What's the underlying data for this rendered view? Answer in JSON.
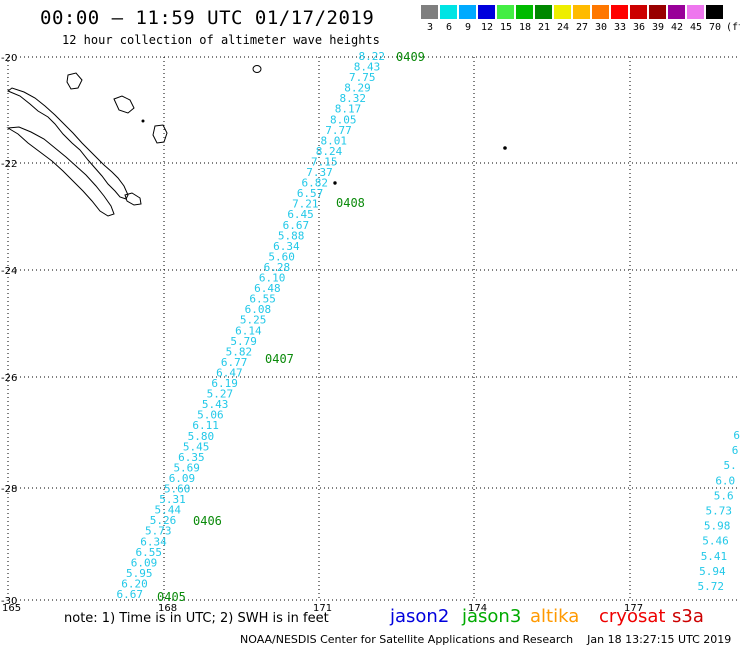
{
  "header": {
    "title": "00:00 – 11:59 UTC 01/17/2019",
    "subtitle": "12 hour collection of altimeter wave heights"
  },
  "legend": {
    "unit": "(ft)",
    "items": [
      {
        "label": "3",
        "color": "#7f7f7f"
      },
      {
        "label": "6",
        "color": "#00e4e4"
      },
      {
        "label": "9",
        "color": "#00aaff"
      },
      {
        "label": "12",
        "color": "#0000dd"
      },
      {
        "label": "15",
        "color": "#44ee44"
      },
      {
        "label": "18",
        "color": "#00bb00"
      },
      {
        "label": "21",
        "color": "#008800"
      },
      {
        "label": "24",
        "color": "#eeee00"
      },
      {
        "label": "27",
        "color": "#ffbb00"
      },
      {
        "label": "30",
        "color": "#ff7700"
      },
      {
        "label": "33",
        "color": "#ff0000"
      },
      {
        "label": "36",
        "color": "#cc0000"
      },
      {
        "label": "39",
        "color": "#990000"
      },
      {
        "label": "42",
        "color": "#990099"
      },
      {
        "label": "45",
        "color": "#ee77ee"
      },
      {
        "label": "70",
        "color": "#000000"
      }
    ]
  },
  "axes": {
    "x_ticks": [
      "165",
      "168",
      "171",
      "174",
      "177"
    ],
    "y_ticks": [
      "-20",
      "-22",
      "-24",
      "-26",
      "-28",
      "-30"
    ]
  },
  "track_main": {
    "values": [
      "8.22",
      "8.43",
      "7.75",
      "8.29",
      "8.32",
      "8.17",
      "8.05",
      "7.77",
      "8.01",
      "8.24",
      "7.15",
      "7.37",
      "6.82",
      "6.57",
      "7.21",
      "6.45",
      "6.67",
      "5.88",
      "6.34",
      "5.60",
      "6.28",
      "6.10",
      "6.48",
      "6.55",
      "6.08",
      "5.25",
      "6.14",
      "5.79",
      "5.82",
      "6.77",
      "6.47",
      "6.19",
      "5.27",
      "5.43",
      "5.06",
      "6.11",
      "5.80",
      "5.45",
      "6.35",
      "5.69",
      "6.09",
      "5.60",
      "5.31",
      "5.44",
      "5.26",
      "5.73",
      "6.34",
      "6.55",
      "6.09",
      "5.95",
      "6.20",
      "6.67"
    ],
    "pass_labels": [
      "0409",
      "0408",
      "0407",
      "0406",
      "0405"
    ]
  },
  "track_east": {
    "values": [
      "6",
      "6",
      "5.",
      "6.0",
      "5.6",
      "5.73",
      "5.98",
      "5.46",
      "5.41",
      "5.94",
      "5.72"
    ]
  },
  "note": "note: 1) Time is in UTC; 2) SWH is in feet",
  "satellites": [
    {
      "name": "jason2",
      "color": "#0000dd"
    },
    {
      "name": "jason3",
      "color": "#00aa00"
    },
    {
      "name": "altika",
      "color": "#ff9900"
    },
    {
      "name": "cryosat",
      "color": "#ee0000"
    },
    {
      "name": "s3a",
      "color": "#cc0000"
    }
  ],
  "footer": "NOAA/NESDIS Center for Satellite Applications and Research    Jan 18 13:27:15 UTC 2019"
}
